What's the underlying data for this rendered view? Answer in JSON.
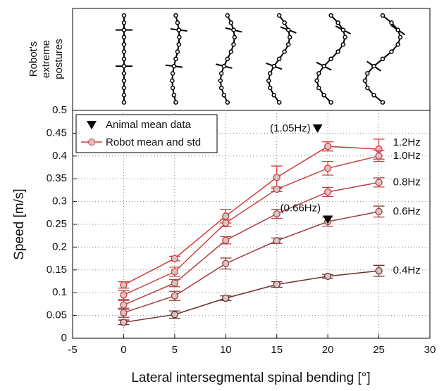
{
  "chart_data": {
    "type": "line",
    "posture_label": [
      "Robot's",
      "extreme",
      "postures"
    ],
    "xlabel": "Lateral intersegmental spinal bending [°]",
    "ylabel": "Speed [m/s]",
    "x": [
      0,
      5,
      10,
      15,
      20,
      25
    ],
    "xlim": [
      -5,
      30
    ],
    "xticks": [
      -5,
      0,
      5,
      10,
      15,
      20,
      25,
      30
    ],
    "ylim": [
      0,
      0.5
    ],
    "yticks": [
      0,
      0.05,
      0.1,
      0.15,
      0.2,
      0.25,
      0.3,
      0.35,
      0.4,
      0.45,
      0.5
    ],
    "grid": true,
    "robot_legend": "Robot mean and std",
    "series": [
      {
        "name": "1.2Hz",
        "color": "#d43a3a",
        "values": [
          0.117,
          0.175,
          0.268,
          0.353,
          0.421,
          0.415
        ],
        "errors": [
          0.007,
          0.005,
          0.015,
          0.025,
          0.01,
          0.022
        ]
      },
      {
        "name": "1.0Hz",
        "color": "#c84444",
        "values": [
          0.095,
          0.146,
          0.253,
          0.327,
          0.373,
          0.4
        ],
        "errors": [
          0.01,
          0.01,
          0.008,
          0.005,
          0.015,
          0.012
        ]
      },
      {
        "name": "0.8Hz",
        "color": "#b54242",
        "values": [
          0.073,
          0.121,
          0.215,
          0.273,
          0.321,
          0.342
        ],
        "errors": [
          0.01,
          0.008,
          0.008,
          0.01,
          0.01,
          0.01
        ]
      },
      {
        "name": "0.6Hz",
        "color": "#9c3e3e",
        "values": [
          0.056,
          0.093,
          0.164,
          0.214,
          0.256,
          0.278
        ],
        "errors": [
          0.01,
          0.01,
          0.012,
          0.006,
          0.01,
          0.012
        ]
      },
      {
        "name": "0.4Hz",
        "color": "#6e3030",
        "values": [
          0.035,
          0.052,
          0.088,
          0.118,
          0.136,
          0.148
        ],
        "errors": [
          0.005,
          0.008,
          0.005,
          0.006,
          0.004,
          0.012
        ]
      }
    ],
    "animal": {
      "name": "Animal mean data",
      "x": [
        19,
        20
      ],
      "values": [
        0.46,
        0.26
      ],
      "labels": [
        "(1.05Hz)",
        "(0.66Hz)"
      ]
    }
  }
}
